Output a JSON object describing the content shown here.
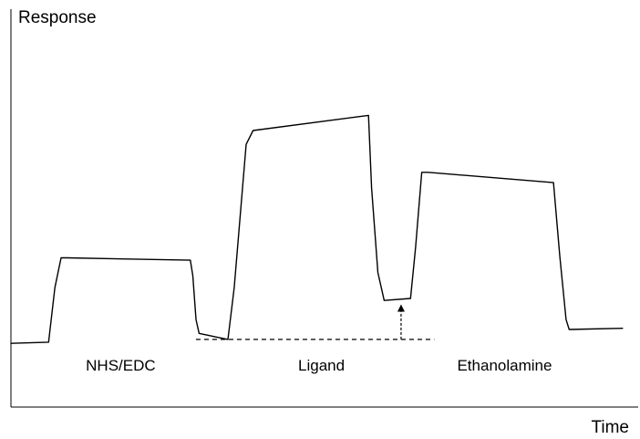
{
  "chart_data": {
    "type": "line",
    "title": "",
    "xlabel": "Time",
    "ylabel": "Response",
    "x_ticks": [],
    "y_ticks": [],
    "grid": false,
    "legend": "none",
    "colors": {
      "trace": "#000000",
      "baseline": "#000000",
      "arrow": "#000000",
      "axes": "#000000"
    },
    "xlim": [
      0,
      100
    ],
    "ylim": [
      0,
      100
    ],
    "series": [
      {
        "x": [
          0,
          6,
          7,
          8,
          9,
          28.6,
          29,
          29.5,
          30,
          34.6,
          35.6,
          37.5,
          38.6,
          57,
          57.5,
          58.5,
          59.5,
          63.7,
          64.5,
          65.5,
          66.5,
          86.5,
          87.5,
          88.5,
          89,
          97.5
        ],
        "y": [
          16.0,
          16.3,
          30,
          37.5,
          37.5,
          36.9,
          33,
          22,
          18.5,
          17.0,
          30,
          66,
          69.5,
          73.3,
          55,
          33.8,
          26.8,
          27.3,
          40,
          59,
          59,
          56.4,
          38,
          22,
          19.5,
          19.8
        ]
      }
    ],
    "reference_line": {
      "y": 17.0,
      "x_start": 29.5,
      "x_end": 67.5,
      "style": "dashed"
    },
    "arrow": {
      "x": 62.2,
      "y_from": 17.0,
      "y_to": 25.8
    },
    "annotations": [
      {
        "text": "NHS/EDC",
        "x": 17.5,
        "y": 9.2
      },
      {
        "text": "Ligand",
        "x": 49.5,
        "y": 9.2
      },
      {
        "text": "Ethanolamine",
        "x": 78.7,
        "y": 9.2
      }
    ]
  }
}
